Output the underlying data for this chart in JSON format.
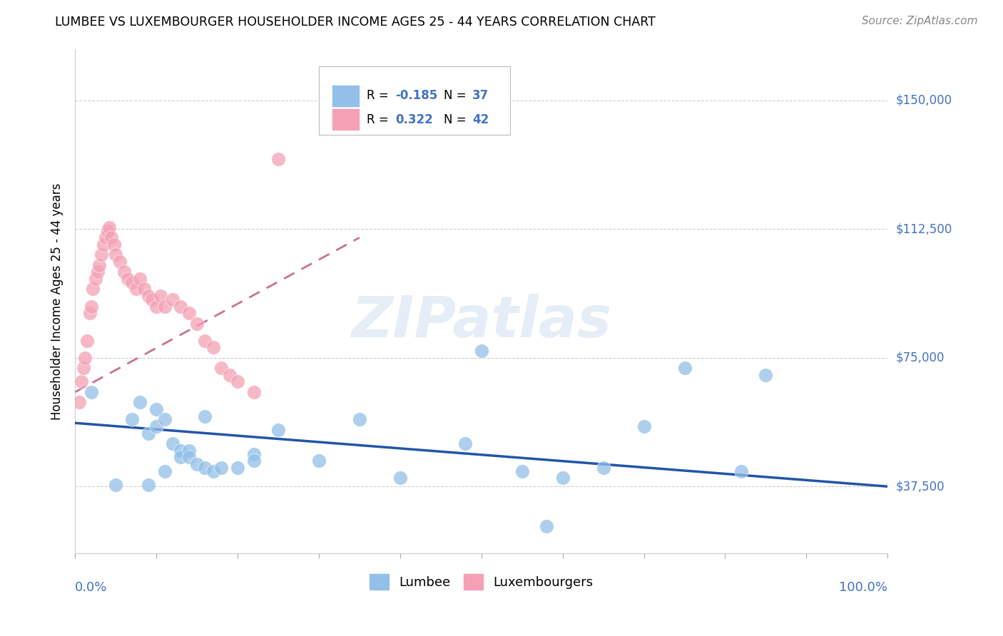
{
  "title": "LUMBEE VS LUXEMBOURGER HOUSEHOLDER INCOME AGES 25 - 44 YEARS CORRELATION CHART",
  "source": "Source: ZipAtlas.com",
  "ylabel": "Householder Income Ages 25 - 44 years",
  "ytick_labels": [
    "$37,500",
    "$75,000",
    "$112,500",
    "$150,000"
  ],
  "ytick_values": [
    37500,
    75000,
    112500,
    150000
  ],
  "ylim": [
    18000,
    165000
  ],
  "xlim": [
    0.0,
    1.0
  ],
  "lumbee_color": "#92C0E8",
  "lux_color": "#F4A0B5",
  "lumbee_line_color": "#2255AA",
  "lux_line_color": "#CC7090",
  "grid_color": "#CCCCCC",
  "watermark": "ZIPatlas",
  "lumbee_x": [
    0.02,
    0.05,
    0.07,
    0.08,
    0.09,
    0.09,
    0.1,
    0.1,
    0.11,
    0.11,
    0.12,
    0.13,
    0.13,
    0.14,
    0.14,
    0.15,
    0.16,
    0.16,
    0.17,
    0.18,
    0.2,
    0.22,
    0.22,
    0.25,
    0.3,
    0.35,
    0.4,
    0.48,
    0.5,
    0.55,
    0.58,
    0.6,
    0.65,
    0.7,
    0.75,
    0.82,
    0.85
  ],
  "lumbee_y": [
    65000,
    38000,
    57000,
    62000,
    53000,
    38000,
    60000,
    55000,
    57000,
    42000,
    50000,
    48000,
    46000,
    48000,
    46000,
    44000,
    58000,
    43000,
    42000,
    43000,
    43000,
    47000,
    45000,
    54000,
    45000,
    57000,
    40000,
    50000,
    77000,
    42000,
    26000,
    40000,
    43000,
    55000,
    72000,
    42000,
    70000
  ],
  "lux_x": [
    0.005,
    0.008,
    0.01,
    0.012,
    0.015,
    0.018,
    0.02,
    0.022,
    0.025,
    0.028,
    0.03,
    0.032,
    0.035,
    0.038,
    0.04,
    0.042,
    0.045,
    0.048,
    0.05,
    0.055,
    0.06,
    0.065,
    0.07,
    0.075,
    0.08,
    0.085,
    0.09,
    0.095,
    0.1,
    0.105,
    0.11,
    0.12,
    0.13,
    0.14,
    0.15,
    0.16,
    0.17,
    0.18,
    0.19,
    0.2,
    0.22,
    0.25
  ],
  "lux_y": [
    62000,
    68000,
    72000,
    75000,
    80000,
    88000,
    90000,
    95000,
    98000,
    100000,
    102000,
    105000,
    108000,
    110000,
    112000,
    113000,
    110000,
    108000,
    105000,
    103000,
    100000,
    98000,
    97000,
    95000,
    98000,
    95000,
    93000,
    92000,
    90000,
    93000,
    90000,
    92000,
    90000,
    88000,
    85000,
    80000,
    78000,
    72000,
    70000,
    68000,
    65000,
    133000
  ]
}
